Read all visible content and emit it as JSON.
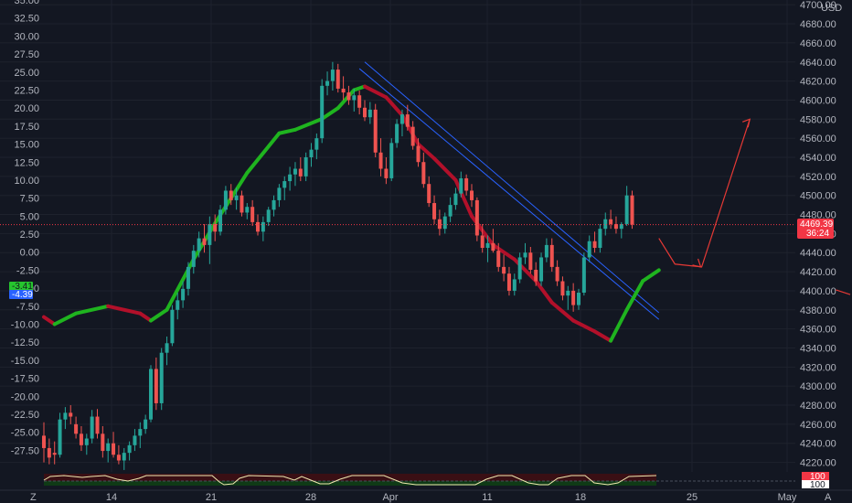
{
  "chart_data": {
    "type": "candlestick",
    "instrument": {
      "currency": "USD",
      "last_price": "4469.39",
      "countdown": "36:24"
    },
    "price_axis": {
      "range": [
        4210,
        4705
      ],
      "ticks": [
        "4700.00",
        "4680.00",
        "4660.00",
        "4640.00",
        "4620.00",
        "4600.00",
        "4580.00",
        "4560.00",
        "4540.00",
        "4520.00",
        "4500.00",
        "4480.00",
        "4460.00",
        "4440.00",
        "4420.00",
        "4400.00",
        "4380.00",
        "4360.00",
        "4340.00",
        "4320.00",
        "4300.00",
        "4280.00",
        "4260.00",
        "4240.00",
        "4220.00"
      ]
    },
    "left_axis": {
      "range": [
        -30.5,
        35
      ],
      "ticks": [
        "35.00",
        "32.50",
        "30.00",
        "27.50",
        "25.00",
        "22.50",
        "20.00",
        "17.50",
        "15.00",
        "12.50",
        "10.00",
        "7.50",
        "5.00",
        "2.50",
        "0.00",
        "-2.50",
        "-5.00",
        "-7.50",
        "-10.00",
        "-12.50",
        "-15.00",
        "-17.50",
        "-20.00",
        "-22.50",
        "-25.00",
        "-27.50"
      ],
      "badges": [
        {
          "label": "-3.41",
          "color": "#26c62e"
        },
        {
          "label": "-4.39",
          "color": "#2962ff"
        }
      ]
    },
    "time_axis": {
      "labels": [
        "14",
        "21",
        "28",
        "Apr",
        "11",
        "18",
        "25",
        "May"
      ]
    },
    "candles": [
      {
        "o": 4248,
        "h": 4262,
        "l": 4220,
        "c": 4235
      },
      {
        "o": 4235,
        "h": 4245,
        "l": 4218,
        "c": 4225
      },
      {
        "o": 4230,
        "h": 4242,
        "l": 4218,
        "c": 4228
      },
      {
        "o": 4228,
        "h": 4272,
        "l": 4225,
        "c": 4265
      },
      {
        "o": 4265,
        "h": 4278,
        "l": 4255,
        "c": 4272
      },
      {
        "o": 4272,
        "h": 4280,
        "l": 4260,
        "c": 4268
      },
      {
        "o": 4260,
        "h": 4268,
        "l": 4245,
        "c": 4250
      },
      {
        "o": 4250,
        "h": 4258,
        "l": 4232,
        "c": 4238
      },
      {
        "o": 4238,
        "h": 4250,
        "l": 4228,
        "c": 4245
      },
      {
        "o": 4245,
        "h": 4275,
        "l": 4240,
        "c": 4268
      },
      {
        "o": 4268,
        "h": 4276,
        "l": 4245,
        "c": 4250
      },
      {
        "o": 4250,
        "h": 4258,
        "l": 4225,
        "c": 4232
      },
      {
        "o": 4232,
        "h": 4245,
        "l": 4220,
        "c": 4240
      },
      {
        "o": 4240,
        "h": 4252,
        "l": 4225,
        "c": 4228
      },
      {
        "o": 4228,
        "h": 4238,
        "l": 4218,
        "c": 4222
      },
      {
        "o": 4222,
        "h": 4235,
        "l": 4212,
        "c": 4230
      },
      {
        "o": 4230,
        "h": 4242,
        "l": 4222,
        "c": 4238
      },
      {
        "o": 4238,
        "h": 4255,
        "l": 4232,
        "c": 4248
      },
      {
        "o": 4248,
        "h": 4262,
        "l": 4235,
        "c": 4255
      },
      {
        "o": 4255,
        "h": 4270,
        "l": 4250,
        "c": 4265
      },
      {
        "o": 4265,
        "h": 4322,
        "l": 4262,
        "c": 4318
      },
      {
        "o": 4318,
        "h": 4330,
        "l": 4275,
        "c": 4282
      },
      {
        "o": 4282,
        "h": 4340,
        "l": 4275,
        "c": 4335
      },
      {
        "o": 4335,
        "h": 4352,
        "l": 4322,
        "c": 4345
      },
      {
        "o": 4345,
        "h": 4385,
        "l": 4342,
        "c": 4380
      },
      {
        "o": 4380,
        "h": 4398,
        "l": 4370,
        "c": 4390
      },
      {
        "o": 4390,
        "h": 4410,
        "l": 4382,
        "c": 4402
      },
      {
        "o": 4402,
        "h": 4430,
        "l": 4395,
        "c": 4425
      },
      {
        "o": 4425,
        "h": 4448,
        "l": 4418,
        "c": 4442
      },
      {
        "o": 4442,
        "h": 4462,
        "l": 4435,
        "c": 4455
      },
      {
        "o": 4455,
        "h": 4470,
        "l": 4440,
        "c": 4448
      },
      {
        "o": 4448,
        "h": 4478,
        "l": 4428,
        "c": 4470
      },
      {
        "o": 4470,
        "h": 4480,
        "l": 4452,
        "c": 4462
      },
      {
        "o": 4462,
        "h": 4490,
        "l": 4458,
        "c": 4485
      },
      {
        "o": 4485,
        "h": 4510,
        "l": 4480,
        "c": 4505
      },
      {
        "o": 4505,
        "h": 4512,
        "l": 4490,
        "c": 4495
      },
      {
        "o": 4495,
        "h": 4508,
        "l": 4485,
        "c": 4500
      },
      {
        "o": 4500,
        "h": 4505,
        "l": 4478,
        "c": 4482
      },
      {
        "o": 4482,
        "h": 4492,
        "l": 4475,
        "c": 4488
      },
      {
        "o": 4488,
        "h": 4495,
        "l": 4468,
        "c": 4472
      },
      {
        "o": 4472,
        "h": 4480,
        "l": 4458,
        "c": 4462
      },
      {
        "o": 4462,
        "h": 4478,
        "l": 4452,
        "c": 4472
      },
      {
        "o": 4472,
        "h": 4488,
        "l": 4468,
        "c": 4485
      },
      {
        "o": 4485,
        "h": 4500,
        "l": 4478,
        "c": 4495
      },
      {
        "o": 4495,
        "h": 4512,
        "l": 4488,
        "c": 4508
      },
      {
        "o": 4508,
        "h": 4520,
        "l": 4495,
        "c": 4515
      },
      {
        "o": 4515,
        "h": 4530,
        "l": 4505,
        "c": 4522
      },
      {
        "o": 4522,
        "h": 4535,
        "l": 4510,
        "c": 4528
      },
      {
        "o": 4528,
        "h": 4540,
        "l": 4515,
        "c": 4520
      },
      {
        "o": 4520,
        "h": 4545,
        "l": 4515,
        "c": 4540
      },
      {
        "o": 4540,
        "h": 4555,
        "l": 4530,
        "c": 4548
      },
      {
        "o": 4548,
        "h": 4565,
        "l": 4538,
        "c": 4560
      },
      {
        "o": 4560,
        "h": 4622,
        "l": 4555,
        "c": 4615
      },
      {
        "o": 4615,
        "h": 4630,
        "l": 4605,
        "c": 4620
      },
      {
        "o": 4620,
        "h": 4640,
        "l": 4610,
        "c": 4632
      },
      {
        "o": 4632,
        "h": 4638,
        "l": 4608,
        "c": 4612
      },
      {
        "o": 4612,
        "h": 4625,
        "l": 4600,
        "c": 4608
      },
      {
        "o": 4608,
        "h": 4615,
        "l": 4595,
        "c": 4600
      },
      {
        "o": 4600,
        "h": 4612,
        "l": 4588,
        "c": 4605
      },
      {
        "o": 4605,
        "h": 4610,
        "l": 4585,
        "c": 4592
      },
      {
        "o": 4592,
        "h": 4600,
        "l": 4578,
        "c": 4582
      },
      {
        "o": 4582,
        "h": 4598,
        "l": 4575,
        "c": 4590
      },
      {
        "o": 4590,
        "h": 4596,
        "l": 4540,
        "c": 4545
      },
      {
        "o": 4545,
        "h": 4560,
        "l": 4520,
        "c": 4528
      },
      {
        "o": 4528,
        "h": 4540,
        "l": 4512,
        "c": 4518
      },
      {
        "o": 4518,
        "h": 4560,
        "l": 4515,
        "c": 4555
      },
      {
        "o": 4555,
        "h": 4580,
        "l": 4550,
        "c": 4575
      },
      {
        "o": 4575,
        "h": 4590,
        "l": 4562,
        "c": 4585
      },
      {
        "o": 4585,
        "h": 4595,
        "l": 4568,
        "c": 4572
      },
      {
        "o": 4572,
        "h": 4578,
        "l": 4548,
        "c": 4552
      },
      {
        "o": 4552,
        "h": 4560,
        "l": 4530,
        "c": 4535
      },
      {
        "o": 4535,
        "h": 4545,
        "l": 4508,
        "c": 4512
      },
      {
        "o": 4512,
        "h": 4520,
        "l": 4488,
        "c": 4492
      },
      {
        "o": 4492,
        "h": 4500,
        "l": 4470,
        "c": 4475
      },
      {
        "o": 4475,
        "h": 4485,
        "l": 4458,
        "c": 4465
      },
      {
        "o": 4465,
        "h": 4482,
        "l": 4460,
        "c": 4478
      },
      {
        "o": 4478,
        "h": 4498,
        "l": 4472,
        "c": 4490
      },
      {
        "o": 4490,
        "h": 4508,
        "l": 4485,
        "c": 4502
      },
      {
        "o": 4502,
        "h": 4525,
        "l": 4498,
        "c": 4518
      },
      {
        "o": 4518,
        "h": 4522,
        "l": 4500,
        "c": 4505
      },
      {
        "o": 4505,
        "h": 4512,
        "l": 4488,
        "c": 4495
      },
      {
        "o": 4495,
        "h": 4498,
        "l": 4452,
        "c": 4458
      },
      {
        "o": 4458,
        "h": 4470,
        "l": 4440,
        "c": 4445
      },
      {
        "o": 4445,
        "h": 4458,
        "l": 4430,
        "c": 4450
      },
      {
        "o": 4450,
        "h": 4465,
        "l": 4440,
        "c": 4442
      },
      {
        "o": 4442,
        "h": 4450,
        "l": 4420,
        "c": 4425
      },
      {
        "o": 4425,
        "h": 4438,
        "l": 4410,
        "c": 4418
      },
      {
        "o": 4418,
        "h": 4425,
        "l": 4395,
        "c": 4400
      },
      {
        "o": 4400,
        "h": 4418,
        "l": 4395,
        "c": 4412
      },
      {
        "o": 4412,
        "h": 4440,
        "l": 4408,
        "c": 4435
      },
      {
        "o": 4435,
        "h": 4450,
        "l": 4428,
        "c": 4440
      },
      {
        "o": 4440,
        "h": 4446,
        "l": 4418,
        "c": 4422
      },
      {
        "o": 4422,
        "h": 4430,
        "l": 4405,
        "c": 4410
      },
      {
        "o": 4410,
        "h": 4440,
        "l": 4405,
        "c": 4435
      },
      {
        "o": 4435,
        "h": 4455,
        "l": 4430,
        "c": 4448
      },
      {
        "o": 4448,
        "h": 4455,
        "l": 4420,
        "c": 4425
      },
      {
        "o": 4425,
        "h": 4432,
        "l": 4405,
        "c": 4410
      },
      {
        "o": 4410,
        "h": 4415,
        "l": 4390,
        "c": 4395
      },
      {
        "o": 4395,
        "h": 4405,
        "l": 4380,
        "c": 4400
      },
      {
        "o": 4400,
        "h": 4408,
        "l": 4378,
        "c": 4385
      },
      {
        "o": 4385,
        "h": 4402,
        "l": 4380,
        "c": 4398
      },
      {
        "o": 4398,
        "h": 4440,
        "l": 4395,
        "c": 4435
      },
      {
        "o": 4435,
        "h": 4458,
        "l": 4430,
        "c": 4452
      },
      {
        "o": 4452,
        "h": 4462,
        "l": 4440,
        "c": 4445
      },
      {
        "o": 4445,
        "h": 4470,
        "l": 4440,
        "c": 4465
      },
      {
        "o": 4465,
        "h": 4482,
        "l": 4458,
        "c": 4475
      },
      {
        "o": 4475,
        "h": 4485,
        "l": 4465,
        "c": 4470
      },
      {
        "o": 4470,
        "h": 4478,
        "l": 4460,
        "c": 4465
      },
      {
        "o": 4465,
        "h": 4472,
        "l": 4455,
        "c": 4470
      },
      {
        "o": 4470,
        "h": 4510,
        "l": 4468,
        "c": 4500
      },
      {
        "o": 4500,
        "h": 4505,
        "l": 4465,
        "c": 4469.39
      }
    ],
    "smoothed_line_left_axis": [
      {
        "x": 0,
        "y": -9
      },
      {
        "x": 2,
        "y": -10
      },
      {
        "x": 6,
        "y": -8.5
      },
      {
        "x": 12,
        "y": -7.5
      },
      {
        "x": 18,
        "y": -8.5
      },
      {
        "x": 20,
        "y": -9.5
      },
      {
        "x": 23,
        "y": -8
      },
      {
        "x": 28,
        "y": -1
      },
      {
        "x": 32,
        "y": 4
      },
      {
        "x": 38,
        "y": 11
      },
      {
        "x": 44,
        "y": 16.5
      },
      {
        "x": 47,
        "y": 17
      },
      {
        "x": 52,
        "y": 18.5
      },
      {
        "x": 55,
        "y": 20
      },
      {
        "x": 58,
        "y": 22.5
      },
      {
        "x": 60,
        "y": 23
      },
      {
        "x": 64,
        "y": 21.5
      },
      {
        "x": 67,
        "y": 19
      },
      {
        "x": 70,
        "y": 15
      },
      {
        "x": 73,
        "y": 13
      },
      {
        "x": 77,
        "y": 10
      },
      {
        "x": 80,
        "y": 5
      },
      {
        "x": 84,
        "y": 1
      },
      {
        "x": 88,
        "y": -1
      },
      {
        "x": 92,
        "y": -4
      },
      {
        "x": 95,
        "y": -7
      },
      {
        "x": 99,
        "y": -9.5
      },
      {
        "x": 103,
        "y": -11
      },
      {
        "x": 106,
        "y": -12.3
      },
      {
        "x": 109,
        "y": -8
      },
      {
        "x": 112,
        "y": -4
      },
      {
        "x": 115,
        "y": -2.5
      }
    ],
    "annotations": {
      "channel_upper": [
        [
          60,
          4640
        ],
        [
          115,
          4377
        ]
      ],
      "channel_lower": [
        [
          59,
          4633
        ],
        [
          115,
          4370
        ]
      ],
      "last_price_line": 4469.39,
      "projection_arrow": [
        [
          115,
          4455
        ],
        [
          118,
          4428
        ],
        [
          123,
          4425
        ],
        [
          132,
          4580
        ]
      ],
      "stop_arrow": [
        [
          131,
          4401
        ],
        [
          133,
          4396
        ]
      ]
    },
    "oscillator": {
      "levels": [
        "100",
        "100"
      ]
    }
  }
}
